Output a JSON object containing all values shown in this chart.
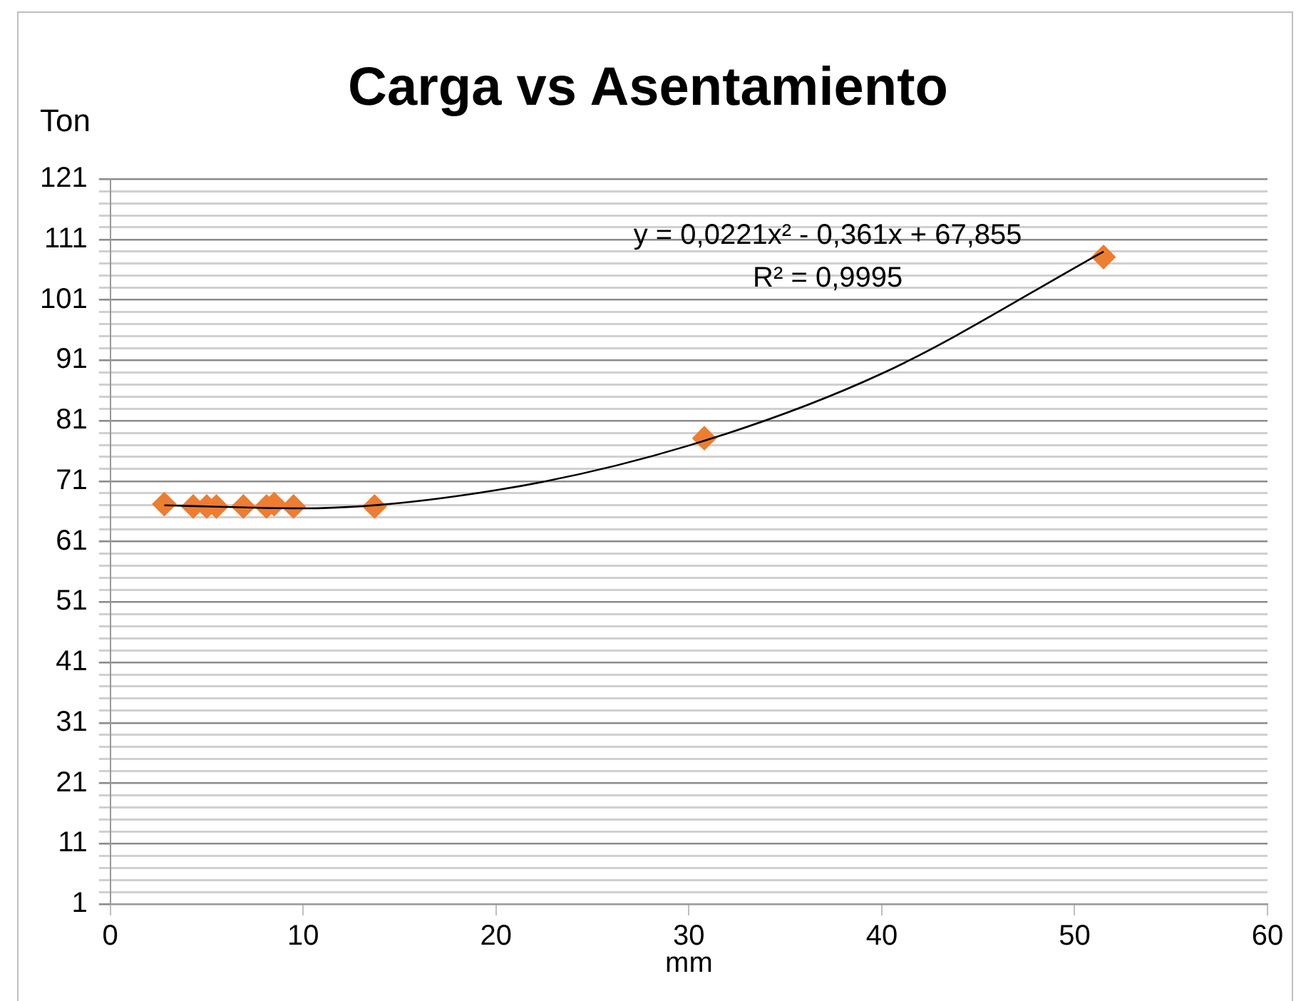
{
  "chart_data": {
    "type": "scatter",
    "title": "Carga vs Asentamiento",
    "xlabel": "mm",
    "ylabel": "Ton",
    "series": [
      {
        "color": "#ed7d31",
        "x": [
          2.8,
          4.3,
          5.0,
          5.5,
          6.9,
          8.1,
          8.5,
          9.5,
          13.7,
          30.8,
          51.5
        ],
        "values": [
          67.2,
          66.8,
          66.8,
          66.8,
          66.8,
          66.8,
          67.2,
          66.8,
          66.8,
          78.1,
          108.1
        ],
        "marker": "diamond"
      },
      {
        "type": "line",
        "color": "#000000",
        "x": [
          2.8,
          10,
          20,
          30,
          40,
          51.5
        ],
        "values": [
          67.0,
          66.5,
          69.5,
          76.9,
          88.8,
          109.0
        ],
        "marker": "none"
      }
    ],
    "xlim": [
      0,
      60
    ],
    "xticks": [
      0,
      10,
      20,
      30,
      40,
      50,
      60
    ],
    "ylim": [
      1,
      121
    ],
    "yticks": [
      1,
      {
        "value": 3,
        "label": null
      },
      {
        "value": 5,
        "label": null
      },
      {
        "value": 7,
        "label": null
      },
      {
        "value": 9,
        "label": null
      },
      11,
      {
        "value": 13,
        "label": null
      },
      {
        "value": 15,
        "label": null
      },
      {
        "value": 17,
        "label": null
      },
      {
        "value": 19,
        "label": null
      },
      21,
      {
        "value": 23,
        "label": null
      },
      {
        "value": 25,
        "label": null
      },
      {
        "value": 27,
        "label": null
      },
      {
        "value": 29,
        "label": null
      },
      31,
      {
        "value": 33,
        "label": null
      },
      {
        "value": 35,
        "label": null
      },
      {
        "value": 37,
        "label": null
      },
      {
        "value": 39,
        "label": null
      },
      41,
      {
        "value": 43,
        "label": null
      },
      {
        "value": 45,
        "label": null
      },
      {
        "value": 47,
        "label": null
      },
      {
        "value": 49,
        "label": null
      },
      51,
      {
        "value": 53,
        "label": null
      },
      {
        "value": 55,
        "label": null
      },
      {
        "value": 57,
        "label": null
      },
      {
        "value": 59,
        "label": null
      },
      61,
      {
        "value": 63,
        "label": null
      },
      {
        "value": 65,
        "label": null
      },
      {
        "value": 67,
        "label": null
      },
      {
        "value": 69,
        "label": null
      },
      71,
      {
        "value": 73,
        "label": null
      },
      {
        "value": 75,
        "label": null
      },
      {
        "value": 77,
        "label": null
      },
      {
        "value": 79,
        "label": null
      },
      81,
      {
        "value": 83,
        "label": null
      },
      {
        "value": 85,
        "label": null
      },
      {
        "value": 87,
        "label": null
      },
      {
        "value": 89,
        "label": null
      },
      91,
      {
        "value": 93,
        "label": null
      },
      {
        "value": 95,
        "label": null
      },
      {
        "value": 97,
        "label": null
      },
      {
        "value": 99,
        "label": null
      },
      101,
      {
        "value": 103,
        "label": null
      },
      {
        "value": 105,
        "label": null
      },
      {
        "value": 107,
        "label": null
      },
      {
        "value": 109,
        "label": null
      },
      111,
      {
        "value": 113,
        "label": null
      },
      {
        "value": 115,
        "label": null
      },
      {
        "value": 117,
        "label": null
      },
      {
        "value": 119,
        "label": null
      },
      121
    ],
    "grid": "y",
    "legend": false,
    "annotations": [
      "y = 0,0221x² - 0,361x + 67,855",
      "R² = 0,9995"
    ]
  }
}
